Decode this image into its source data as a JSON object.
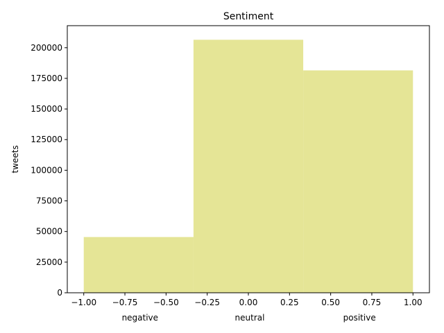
{
  "chart_data": {
    "type": "bar",
    "title": "Sentiment",
    "xlabel": "",
    "ylabel": "tweets",
    "bins": [
      {
        "x0": -1.0,
        "x1": -0.3333,
        "value": 45500
      },
      {
        "x0": -0.3333,
        "x1": 0.3333,
        "value": 206500
      },
      {
        "x0": 0.3333,
        "x1": 1.0,
        "value": 181500
      }
    ],
    "xlim": [
      -1.1,
      1.1
    ],
    "ylim": [
      0,
      218000
    ],
    "xticks": [
      {
        "value": -1.0,
        "label": "−1.00"
      },
      {
        "value": -0.75,
        "label": "−0.75"
      },
      {
        "value": -0.5,
        "label": "−0.50"
      },
      {
        "value": -0.25,
        "label": "−0.25"
      },
      {
        "value": 0.0,
        "label": "0.00"
      },
      {
        "value": 0.25,
        "label": "0.25"
      },
      {
        "value": 0.5,
        "label": "0.50"
      },
      {
        "value": 0.75,
        "label": "0.75"
      },
      {
        "value": 1.0,
        "label": "1.00"
      }
    ],
    "yticks": [
      {
        "value": 0,
        "label": "0"
      },
      {
        "value": 25000,
        "label": "25000"
      },
      {
        "value": 50000,
        "label": "50000"
      },
      {
        "value": 75000,
        "label": "75000"
      },
      {
        "value": 100000,
        "label": "100000"
      },
      {
        "value": 125000,
        "label": "125000"
      },
      {
        "value": 150000,
        "label": "150000"
      },
      {
        "value": 175000,
        "label": "175000"
      },
      {
        "value": 200000,
        "label": "200000"
      }
    ],
    "category_labels": [
      {
        "value": -0.6667,
        "label": "negative"
      },
      {
        "value": 0.0,
        "label": "neutral"
      },
      {
        "value": 0.6667,
        "label": "positive"
      }
    ],
    "bar_color": "#e5e596",
    "grid": false,
    "legend": "none"
  }
}
